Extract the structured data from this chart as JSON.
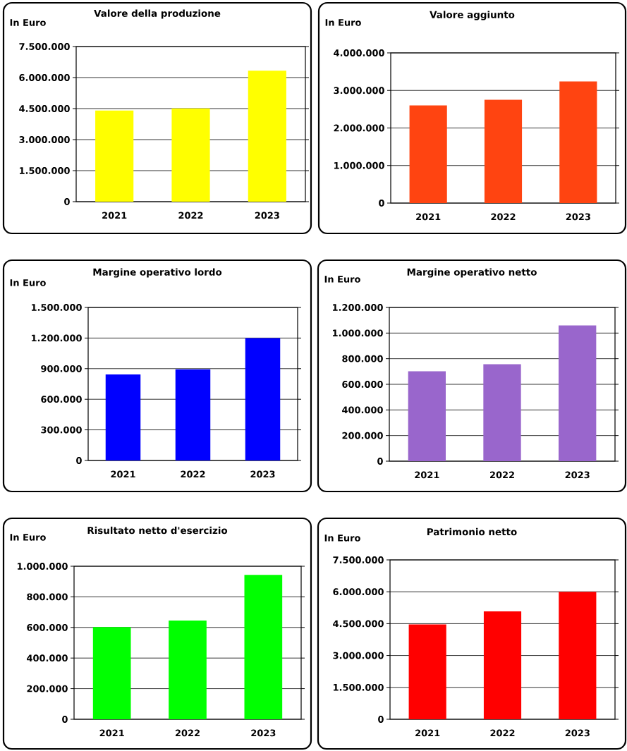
{
  "chart_data": [
    {
      "type": "bar",
      "title": "Valore della produzione",
      "ylabel": "In Euro",
      "categories": [
        "2021",
        "2022",
        "2023"
      ],
      "values": [
        4410000,
        4510000,
        6330000
      ],
      "color": "#ffff00",
      "ylim": [
        0,
        7500000
      ],
      "yticks": [
        0,
        {
          "value": 1500000,
          "label": "1.500.000"
        },
        {
          "value": 3000000,
          "label": "3.000.000"
        },
        {
          "value": 4500000,
          "label": "4.500.000"
        },
        {
          "value": 6000000,
          "label": "6.000.000"
        },
        {
          "value": 7500000,
          "label": "7.500.000"
        }
      ],
      "grid": "y"
    },
    {
      "type": "bar",
      "title": "Valore aggiunto",
      "ylabel": "In Euro",
      "categories": [
        "2021",
        "2022",
        "2023"
      ],
      "values": [
        2600000,
        2750000,
        3240000
      ],
      "color": "#ff4411",
      "ylim": [
        0,
        4000000
      ],
      "yticks": [
        0,
        {
          "value": 1000000,
          "label": "1.000.000"
        },
        {
          "value": 2000000,
          "label": "2.000.000"
        },
        {
          "value": 3000000,
          "label": "3.000.000"
        },
        {
          "value": 4000000,
          "label": "4.000.000"
        }
      ],
      "grid": "y"
    },
    {
      "type": "bar",
      "title": "Margine operativo lordo",
      "ylabel": "In Euro",
      "categories": [
        "2021",
        "2022",
        "2023"
      ],
      "values": [
        844000,
        893000,
        1200000
      ],
      "color": "#0000ff",
      "ylim": [
        0,
        1500000
      ],
      "yticks": [
        0,
        {
          "value": 300000,
          "label": "300.000"
        },
        {
          "value": 600000,
          "label": "600.000"
        },
        {
          "value": 900000,
          "label": "900.000"
        },
        {
          "value": 1200000,
          "label": "1.200.000"
        },
        {
          "value": 1500000,
          "label": "1.500.000"
        }
      ],
      "grid": "y"
    },
    {
      "type": "bar",
      "title": "Margine operativo netto",
      "ylabel": "In Euro",
      "categories": [
        "2021",
        "2022",
        "2023"
      ],
      "values": [
        702000,
        757000,
        1060000
      ],
      "color": "#9966cc",
      "ylim": [
        0,
        1200000
      ],
      "yticks": [
        0,
        {
          "value": 200000,
          "label": "200.000"
        },
        {
          "value": 400000,
          "label": "400.000"
        },
        {
          "value": 600000,
          "label": "600.000"
        },
        {
          "value": 800000,
          "label": "800.000"
        },
        {
          "value": 1000000,
          "label": "1.000.000"
        },
        {
          "value": 1200000,
          "label": "1.200.000"
        }
      ],
      "grid": "y"
    },
    {
      "type": "bar",
      "title": "Risultato netto d'esercizio",
      "ylabel": "In Euro",
      "categories": [
        "2021",
        "2022",
        "2023"
      ],
      "values": [
        602000,
        645000,
        943000
      ],
      "color": "#00ff00",
      "ylim": [
        0,
        1000000
      ],
      "yticks": [
        0,
        {
          "value": 200000,
          "label": "200.000"
        },
        {
          "value": 400000,
          "label": "400.000"
        },
        {
          "value": 600000,
          "label": "600.000"
        },
        {
          "value": 800000,
          "label": "800.000"
        },
        {
          "value": 1000000,
          "label": "1.000.000"
        }
      ],
      "grid": "y"
    },
    {
      "type": "bar",
      "title": "Patrimonio netto",
      "ylabel": "In Euro",
      "categories": [
        "2021",
        "2022",
        "2023"
      ],
      "values": [
        4460000,
        5080000,
        6000000
      ],
      "color": "#ff0000",
      "ylim": [
        0,
        7500000
      ],
      "yticks": [
        0,
        {
          "value": 1500000,
          "label": "1.500.000"
        },
        {
          "value": 3000000,
          "label": "3.000.000"
        },
        {
          "value": 4500000,
          "label": "4.500.000"
        },
        {
          "value": 6000000,
          "label": "6.000.000"
        },
        {
          "value": 7500000,
          "label": "7.500.000"
        }
      ],
      "grid": "y"
    }
  ]
}
